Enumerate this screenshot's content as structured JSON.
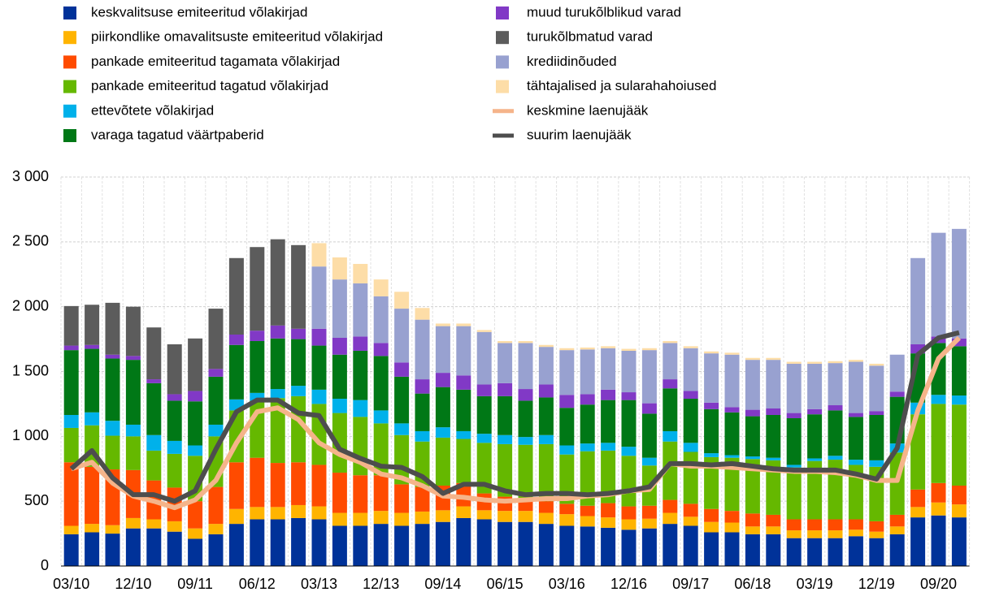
{
  "chart_data": {
    "type": "stacked-bar",
    "categories": [
      "03/10",
      null,
      null,
      "12/10",
      null,
      null,
      "09/11",
      null,
      null,
      "06/12",
      null,
      null,
      "03/13",
      null,
      null,
      "12/13",
      null,
      null,
      "09/14",
      null,
      null,
      "06/15",
      null,
      null,
      "03/16",
      null,
      null,
      "12/16",
      null,
      null,
      "09/17",
      null,
      null,
      "06/18",
      null,
      null,
      "03/19",
      null,
      null,
      "12/19",
      null,
      null,
      "09/20",
      null
    ],
    "ylim": [
      0,
      3000
    ],
    "yticks": [
      0,
      500,
      {
        "value": 1000,
        "label": "1 000"
      },
      {
        "value": 1500,
        "label": "1 500"
      },
      {
        "value": 2000,
        "label": "2 000"
      },
      {
        "value": 2500,
        "label": "2 500"
      },
      {
        "value": 3000,
        "label": "3 000"
      }
    ],
    "grid": true,
    "series": [
      {
        "name": "keskvalitsuse emiteeritud võlakirjad",
        "color": "#003299",
        "values": [
          245,
          260,
          250,
          290,
          290,
          265,
          210,
          245,
          325,
          360,
          360,
          370,
          360,
          310,
          310,
          325,
          310,
          325,
          340,
          370,
          360,
          340,
          340,
          325,
          310,
          305,
          295,
          280,
          290,
          325,
          310,
          260,
          260,
          245,
          245,
          215,
          215,
          215,
          230,
          215,
          245,
          375,
          390,
          375
        ]
      },
      {
        "name": "piirkondlike omavalitsuste emiteeritud võlakirjad",
        "color": "#ffb400",
        "values": [
          65,
          65,
          65,
          80,
          70,
          80,
          80,
          80,
          115,
          95,
          95,
          100,
          100,
          100,
          100,
          100,
          100,
          95,
          90,
          90,
          70,
          85,
          85,
          85,
          90,
          80,
          80,
          80,
          75,
          85,
          70,
          80,
          75,
          60,
          60,
          60,
          60,
          60,
          50,
          50,
          60,
          80,
          100,
          100
        ]
      },
      {
        "name": "pankade emiteeritud tagamata võlakirjad",
        "color": "#ff4b00",
        "values": [
          490,
          440,
          430,
          370,
          300,
          260,
          210,
          285,
          360,
          380,
          340,
          330,
          320,
          310,
          290,
          275,
          220,
          190,
          190,
          180,
          130,
          110,
          90,
          90,
          80,
          80,
          110,
          100,
          100,
          100,
          100,
          100,
          90,
          100,
          90,
          85,
          85,
          85,
          80,
          80,
          90,
          135,
          150,
          145
        ]
      },
      {
        "name": "pankade emiteeritud tagatud võlakirjad",
        "color": "#65b800",
        "values": [
          265,
          320,
          260,
          260,
          230,
          260,
          350,
          390,
          400,
          440,
          500,
          510,
          470,
          460,
          450,
          400,
          380,
          350,
          370,
          340,
          390,
          405,
          420,
          440,
          380,
          420,
          405,
          390,
          310,
          450,
          400,
          400,
          410,
          420,
          420,
          400,
          450,
          460,
          420,
          420,
          480,
          580,
          610,
          625
        ]
      },
      {
        "name": "ettevõtete võlakirjad",
        "color": "#00b1ea",
        "values": [
          100,
          100,
          115,
          90,
          120,
          100,
          80,
          90,
          85,
          60,
          70,
          80,
          110,
          110,
          130,
          100,
          90,
          80,
          80,
          60,
          70,
          70,
          60,
          70,
          70,
          60,
          60,
          70,
          60,
          80,
          70,
          30,
          20,
          20,
          20,
          20,
          20,
          30,
          40,
          50,
          70,
          90,
          70,
          70
        ]
      },
      {
        "name": "varaga tagatud väärtpaberid",
        "color": "#007816",
        "values": [
          500,
          490,
          480,
          500,
          400,
          310,
          340,
          370,
          420,
          400,
          390,
          360,
          340,
          340,
          380,
          420,
          360,
          290,
          310,
          320,
          290,
          300,
          280,
          290,
          290,
          300,
          330,
          360,
          340,
          330,
          340,
          340,
          330,
          310,
          330,
          360,
          340,
          350,
          330,
          350,
          360,
          380,
          400,
          380
        ]
      },
      {
        "name": "muud turukõlblikud varad",
        "color": "#8139c6",
        "values": [
          35,
          30,
          30,
          30,
          30,
          50,
          80,
          60,
          80,
          80,
          100,
          80,
          130,
          130,
          110,
          100,
          110,
          110,
          110,
          110,
          90,
          100,
          90,
          100,
          100,
          80,
          80,
          60,
          80,
          70,
          60,
          50,
          40,
          50,
          50,
          40,
          40,
          40,
          30,
          30,
          40,
          70,
          50,
          60
        ]
      },
      {
        "name": "turukõlbmatud varad",
        "color": "#5c5c5c",
        "values": [
          305,
          310,
          400,
          380,
          400,
          385,
          405,
          465,
          590,
          645,
          665,
          645,
          0,
          0,
          0,
          0,
          0,
          0,
          0,
          0,
          0,
          0,
          0,
          0,
          0,
          0,
          0,
          0,
          0,
          0,
          0,
          0,
          0,
          0,
          0,
          0,
          0,
          0,
          0,
          0,
          0,
          0,
          0,
          0
        ]
      },
      {
        "name": "krediidinõuded",
        "color": "#98a1d0",
        "values": [
          0,
          0,
          0,
          0,
          0,
          0,
          0,
          0,
          0,
          0,
          0,
          0,
          480,
          450,
          410,
          360,
          415,
          460,
          360,
          380,
          405,
          310,
          355,
          290,
          345,
          345,
          320,
          320,
          410,
          280,
          330,
          380,
          405,
          385,
          375,
          380,
          350,
          325,
          395,
          350,
          285,
          665,
          800,
          845
        ]
      },
      {
        "name": "tähtajalised ja sularahahoiused",
        "color": "#fddda7",
        "values": [
          0,
          0,
          0,
          0,
          0,
          0,
          0,
          0,
          0,
          0,
          0,
          0,
          180,
          170,
          150,
          130,
          130,
          90,
          20,
          20,
          15,
          15,
          15,
          15,
          15,
          15,
          15,
          15,
          15,
          15,
          15,
          15,
          15,
          15,
          15,
          15,
          15,
          15,
          15,
          15,
          0,
          0,
          0,
          0
        ]
      },
      {
        "name": "keskmine laenujääk",
        "color": "#f5b48a",
        "type": "line",
        "values": [
          750,
          800,
          640,
          540,
          500,
          450,
          510,
          660,
          950,
          1190,
          1220,
          1130,
          950,
          860,
          800,
          710,
          680,
          620,
          540,
          530,
          510,
          500,
          510,
          520,
          520,
          540,
          550,
          580,
          590,
          790,
          770,
          770,
          760,
          750,
          740,
          730,
          730,
          720,
          700,
          660,
          660,
          1200,
          1600,
          1760
        ]
      },
      {
        "name": "suurim laenujääk",
        "color": "#4d4d4d",
        "type": "line",
        "values": [
          750,
          890,
          680,
          550,
          550,
          500,
          580,
          900,
          1190,
          1280,
          1280,
          1180,
          1160,
          900,
          830,
          770,
          760,
          690,
          560,
          630,
          630,
          580,
          550,
          560,
          560,
          550,
          560,
          580,
          610,
          790,
          790,
          780,
          790,
          770,
          750,
          740,
          740,
          740,
          710,
          670,
          910,
          1630,
          1760,
          1800
        ]
      }
    ]
  }
}
